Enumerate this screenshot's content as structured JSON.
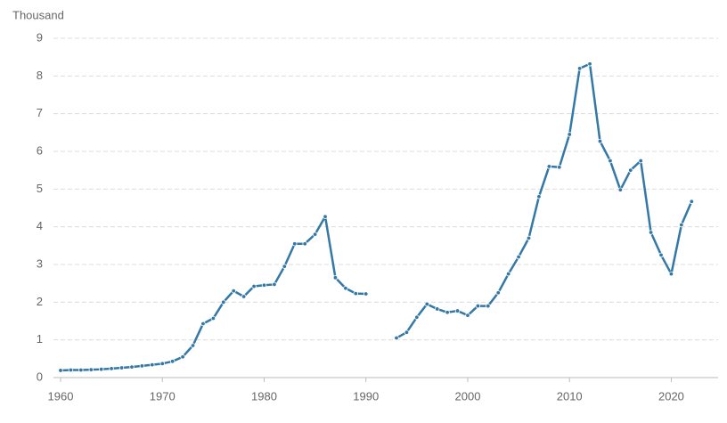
{
  "chart_data": {
    "type": "line",
    "y_label": "Thousand",
    "x": [
      1960,
      1961,
      1962,
      1963,
      1964,
      1965,
      1966,
      1967,
      1968,
      1969,
      1970,
      1971,
      1972,
      1973,
      1974,
      1975,
      1976,
      1977,
      1978,
      1979,
      1980,
      1981,
      1982,
      1983,
      1984,
      1985,
      1986,
      1987,
      1988,
      1989,
      1990,
      1991,
      1992,
      1993,
      1994,
      1995,
      1996,
      1997,
      1998,
      1999,
      2000,
      2001,
      2002,
      2003,
      2004,
      2005,
      2006,
      2007,
      2008,
      2009,
      2010,
      2011,
      2012,
      2013,
      2014,
      2015,
      2016,
      2017,
      2018,
      2019,
      2020,
      2021,
      2022
    ],
    "values": [
      0.19,
      0.2,
      0.2,
      0.21,
      0.22,
      0.24,
      0.26,
      0.28,
      0.31,
      0.34,
      0.37,
      0.43,
      0.55,
      0.85,
      1.43,
      1.57,
      2.0,
      2.3,
      2.15,
      2.42,
      2.45,
      2.47,
      2.95,
      3.55,
      3.55,
      3.8,
      4.27,
      2.65,
      2.37,
      2.23,
      2.22,
      null,
      null,
      1.05,
      1.2,
      1.6,
      1.95,
      1.82,
      1.73,
      1.77,
      1.65,
      1.9,
      1.9,
      2.25,
      2.75,
      3.2,
      3.7,
      4.8,
      5.6,
      5.58,
      6.45,
      8.2,
      8.32,
      6.27,
      5.75,
      4.98,
      5.5,
      5.75,
      3.85,
      3.25,
      2.75,
      4.05,
      4.67
    ],
    "color": "#3478a5",
    "xlim": [
      1959.3,
      2024.6
    ],
    "xticks": [
      1960,
      1970,
      1980,
      1990,
      2000,
      2010,
      2020
    ],
    "ylim": [
      0,
      9
    ],
    "yticks": [
      0,
      1,
      2,
      3,
      4,
      5,
      6,
      7,
      8,
      9
    ],
    "grid": true
  }
}
